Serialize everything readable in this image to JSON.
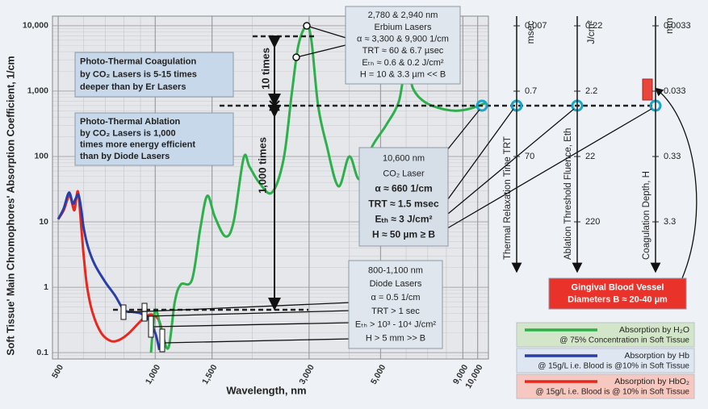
{
  "chart_data": {
    "type": "line",
    "x_label": "Wavelength, nm",
    "y_label": "Soft Tissue' Main Chromophores' Absorption Coefficient, 1/cm",
    "xlog": true,
    "ylog": true,
    "grid": true,
    "xlim": [
      480,
      10800
    ],
    "ylim": [
      0.08,
      14000
    ],
    "xticks": [
      500,
      {
        "value": 1000,
        "label": "1,000"
      },
      {
        "value": 1500,
        "label": "1,500"
      },
      {
        "value": 3000,
        "label": "3,000"
      },
      {
        "value": 5000,
        "label": "5,000"
      },
      {
        "value": 9000,
        "label": "9,000"
      },
      {
        "value": 10000,
        "label": "10,000"
      }
    ],
    "yticks": [
      0.1,
      1,
      10,
      100,
      {
        "value": 1000,
        "label": "1,000"
      },
      {
        "value": 10000,
        "label": "10,000"
      }
    ],
    "legend_position": "lower right",
    "series": [
      {
        "name": "Absorption by H₂O",
        "note": "@ 75% Concentration in Soft Tissue",
        "color": "#2db04b",
        "x": [
          970,
          1000,
          1050,
          1100,
          1150,
          1200,
          1300,
          1380,
          1450,
          1530,
          1650,
          1750,
          1880,
          1960,
          2100,
          2300,
          2500,
          2650,
          2780,
          2940,
          3050,
          3200,
          3400,
          3700,
          4000,
          4300,
          4700,
          5200,
          5700,
          6000,
          6300,
          6800,
          7500,
          8500,
          9500,
          10600
        ],
        "values": [
          0.1,
          0.45,
          0.2,
          0.12,
          0.6,
          1.1,
          1.3,
          8,
          25,
          12,
          6,
          10,
          95,
          70,
          40,
          28,
          90,
          900,
          5000,
          9800,
          6000,
          600,
          150,
          35,
          100,
          45,
          140,
          300,
          700,
          2700,
          1100,
          700,
          560,
          500,
          540,
          660
        ]
      },
      {
        "name": "Absorption by Hb",
        "note": "@ 15g/L i.e. Blood is @10% in Soft Tissue",
        "color": "#2a3ea8",
        "x": [
          500,
          520,
          540,
          555,
          565,
          578,
          590,
          600,
          620,
          650,
          700,
          750,
          800,
          850,
          900,
          950,
          1000,
          1030
        ],
        "values": [
          11,
          16,
          28,
          19,
          22,
          26,
          15,
          8,
          4,
          2.2,
          1.2,
          0.75,
          0.45,
          0.42,
          0.4,
          0.33,
          0.2,
          0.11
        ]
      },
      {
        "name": "Absorption by HbO₂",
        "note": "@ 15g/L i.e. Blood is @ 10% in Soft Tissue",
        "color": "#e8281e",
        "x": [
          500,
          520,
          542,
          560,
          568,
          577,
          590,
          600,
          615,
          640,
          680,
          730,
          780,
          830,
          880,
          930,
          980,
          1030,
          1070
        ],
        "values": [
          11,
          15,
          25,
          15,
          22,
          28,
          8,
          3,
          1,
          0.4,
          0.2,
          0.15,
          0.16,
          0.2,
          0.27,
          0.35,
          0.38,
          0.3,
          0.13
        ]
      }
    ]
  },
  "annotations": [
    {
      "lines": [
        "2,780 & 2,940 nm",
        "Erbium Lasers",
        "α ≈ 3,300 & 9,900 1/cm",
        "TRT ≈ 60 & 6.7 µsec",
        "Eₜₕ ≈ 0.6 & 0.2 J/cm²",
        "H = 10 & 3.3 µm << B"
      ]
    },
    {
      "lines": [
        "10,600 nm",
        "CO₂ Laser",
        "α ≈ 660 1/cm",
        "TRT ≈ 1.5 msec",
        "Eₜₕ ≈ 3 J/cm²",
        "H ≈ 50 µm ≥ B"
      ]
    },
    {
      "lines": [
        "800-1,100 nm",
        "Diode Lasers",
        "α = 0.5 1/cm",
        "TRT > 1 sec",
        "Eₜₕ > 10³ - 10⁴  J/cm²",
        "H > 5 mm >> B"
      ]
    },
    {
      "lines": [
        "Photo-Thermal Coagulation",
        "by CO₂ Lasers is 5-15 times",
        "deeper than by Er Lasers"
      ]
    },
    {
      "lines": [
        "Photo-Thermal Ablation",
        "by CO₂ Lasers is 1,000",
        "times more energy efficient",
        "than by Diode Lasers"
      ]
    },
    {
      "lines": [
        "Gingival Blood Vessel",
        "Diameters B ≈ 20-40 µm"
      ]
    }
  ],
  "ratio_labels": [
    "10 times",
    "1,000 times"
  ],
  "scales": [
    {
      "unit": "msec",
      "title": "Thermal Relaxation Time TRT",
      "ticks": [
        0.007,
        0.7,
        70
      ]
    },
    {
      "unit": "J/cm²",
      "title": "Ablation Threshold Fluence, Eth",
      "ticks": [
        0.22,
        2.2,
        22,
        220
      ]
    },
    {
      "unit": "mm",
      "title": "Coagulation Depth, H",
      "ticks": [
        0.0033,
        0.033,
        0.33,
        3.3
      ]
    }
  ]
}
